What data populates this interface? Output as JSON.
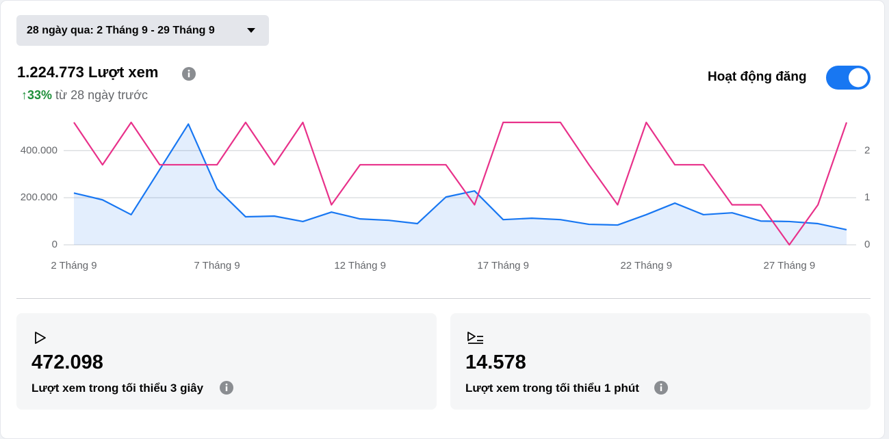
{
  "date_range": "28 ngày qua: 2 Tháng 9 - 29 Tháng 9",
  "summary": {
    "total": "1.224.773 Lượt xem",
    "change": "33%",
    "change_note": "từ 28 ngày trước"
  },
  "toggle_label": "Hoạt động đăng",
  "chart_data": {
    "type": "line",
    "categories": [
      "2 Tháng 9",
      null,
      null,
      null,
      null,
      "7 Tháng 9",
      null,
      null,
      null,
      null,
      "12 Tháng 9",
      null,
      null,
      null,
      null,
      "17 Tháng 9",
      null,
      null,
      null,
      null,
      "22 Tháng 9",
      null,
      null,
      null,
      null,
      "27 Tháng 9",
      null,
      null
    ],
    "series": [
      {
        "color": "#1877f2",
        "area": true,
        "values": [
          220000,
          191000,
          128000,
          320000,
          513000,
          238000,
          119000,
          122000,
          99000,
          139000,
          110000,
          104000,
          90000,
          203000,
          229000,
          107000,
          113000,
          107000,
          87000,
          84000,
          128000,
          177000,
          128000,
          136000,
          101000,
          99000,
          90000,
          64000
        ]
      },
      {
        "color": "#e8318a",
        "axis": "y2",
        "values": [
          2.6,
          1.7,
          2.6,
          1.7,
          1.7,
          1.7,
          2.6,
          1.7,
          2.6,
          0.85,
          1.7,
          1.7,
          1.7,
          1.7,
          0.85,
          2.6,
          2.6,
          2.6,
          1.7,
          0.85,
          2.6,
          1.7,
          1.7,
          0.85,
          0.85,
          0,
          0.85,
          2.6
        ]
      }
    ],
    "ylim": [
      0,
      520000
    ],
    "yticks": [
      0,
      {
        "value": 200000,
        "label": "200.000"
      },
      {
        "value": 400000,
        "label": "400.000"
      }
    ],
    "y2lim": [
      0,
      2.6
    ],
    "y2ticks": [
      0,
      1,
      2
    ],
    "grid": true
  },
  "stats": [
    {
      "value": "472.098",
      "label": "Lượt xem trong tối thiểu 3 giây"
    },
    {
      "value": "14.578",
      "label": "Lượt xem trong tối thiểu 1 phút"
    }
  ]
}
